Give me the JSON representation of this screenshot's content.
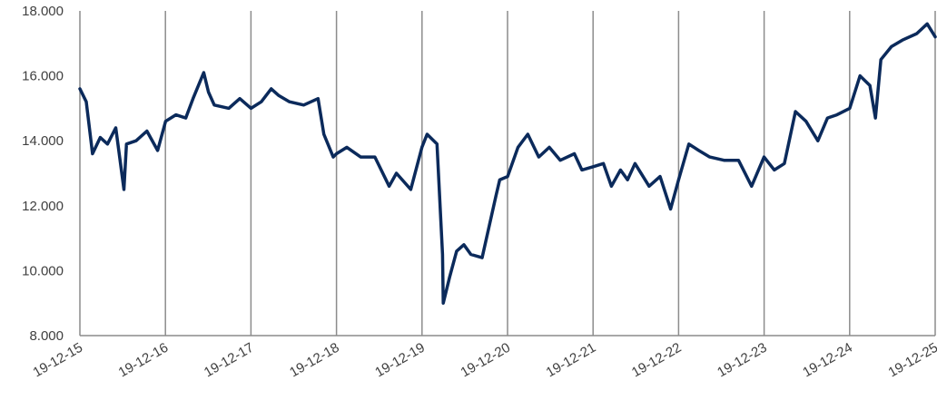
{
  "chart_data": {
    "type": "line",
    "title": "",
    "xlabel": "",
    "ylabel": "",
    "ylim": [
      8000,
      18000
    ],
    "y_ticks": [
      "8.000",
      "10.000",
      "12.000",
      "14.000",
      "16.000",
      "18.000"
    ],
    "x_ticks": [
      "19-12-15",
      "19-12-16",
      "19-12-17",
      "19-12-18",
      "19-12-19",
      "19-12-20",
      "19-12-21",
      "19-12-22",
      "19-12-23",
      "19-12-24",
      "19-12-25"
    ],
    "vertical_gridlines": true,
    "line_color": "#0b2a5b",
    "series": [
      {
        "x": [
          "2015-12-19",
          "2016-01-15",
          "2016-02-11",
          "2016-03-15",
          "2016-04-15",
          "2016-05-20",
          "2016-06-24",
          "2016-07-05",
          "2016-08-15",
          "2016-09-30",
          "2016-11-15",
          "2016-12-19",
          "2017-02-01",
          "2017-03-15",
          "2017-04-15",
          "2017-05-31",
          "2017-06-20",
          "2017-07-15",
          "2017-09-15",
          "2017-11-01",
          "2017-12-19",
          "2018-02-01",
          "2018-03-15",
          "2018-04-15",
          "2018-06-01",
          "2018-08-01",
          "2018-10-01",
          "2018-10-26",
          "2018-12-05",
          "2018-12-19",
          "2019-02-01",
          "2019-04-01",
          "2019-06-01",
          "2019-08-01",
          "2019-09-01",
          "2019-11-01",
          "2019-12-19",
          "2020-01-10",
          "2020-02-21",
          "2020-03-16",
          "2020-03-19",
          "2020-04-15",
          "2020-05-15",
          "2020-06-15",
          "2020-07-15",
          "2020-09-01",
          "2020-10-30",
          "2020-11-15",
          "2020-12-19",
          "2021-02-01",
          "2021-03-15",
          "2021-05-01",
          "2021-06-15",
          "2021-08-01",
          "2021-09-30",
          "2021-11-01",
          "2021-12-19",
          "2022-02-01",
          "2022-03-07",
          "2022-04-15",
          "2022-05-15",
          "2022-06-16",
          "2022-08-15",
          "2022-10-01",
          "2022-11-15",
          "2022-12-19",
          "2023-02-01",
          "2023-03-15",
          "2023-05-01",
          "2023-07-01",
          "2023-09-01",
          "2023-10-27",
          "2023-12-19",
          "2024-02-01",
          "2024-03-15",
          "2024-05-01",
          "2024-06-15",
          "2024-08-05",
          "2024-09-15",
          "2024-10-25",
          "2024-12-19",
          "2025-02-01",
          "2025-03-15",
          "2025-04-08",
          "2025-05-01",
          "2025-06-15",
          "2025-08-01",
          "2025-10-01",
          "2025-11-15",
          "2025-12-19"
        ],
        "values": [
          15600,
          15200,
          13600,
          14100,
          13900,
          14400,
          12500,
          13900,
          14000,
          14300,
          13700,
          14600,
          14800,
          14700,
          15300,
          16100,
          15500,
          15100,
          15000,
          15300,
          15000,
          15200,
          15600,
          15400,
          15200,
          15100,
          15300,
          14200,
          13500,
          13600,
          13800,
          13500,
          13500,
          12600,
          13000,
          12500,
          13800,
          14200,
          13900,
          10500,
          9000,
          9800,
          10600,
          10800,
          10500,
          10400,
          12300,
          12800,
          12900,
          13800,
          14200,
          13500,
          13800,
          13400,
          13600,
          13100,
          13200,
          13300,
          12600,
          13100,
          12800,
          13300,
          12600,
          12900,
          11900,
          12800,
          13900,
          13700,
          13500,
          13400,
          13400,
          12600,
          13500,
          13100,
          13300,
          14900,
          14600,
          14000,
          14700,
          14800,
          15000,
          16000,
          15700,
          14700,
          16500,
          16900,
          17100,
          17300,
          17600,
          17200
        ]
      }
    ]
  }
}
